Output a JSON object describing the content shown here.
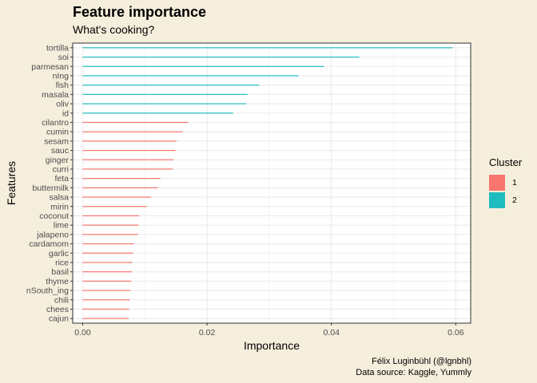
{
  "title": "Feature importance",
  "subtitle": "What's cooking?",
  "caption_line1": "Félix Luginbühl (@lgnbhl)",
  "caption_line2": "Data source: Kaggle, Yummly",
  "colors": {
    "cluster1": "#f8766d",
    "cluster2": "#1fbcbf",
    "panel_bg": "#ffffff",
    "page_bg": "#f6eedd",
    "grid": "#ebebeb"
  },
  "legend": {
    "title": "Cluster",
    "items": [
      {
        "label": "1",
        "color": "#f8766d"
      },
      {
        "label": "2",
        "color": "#1fbcbf"
      }
    ]
  },
  "chart_data": {
    "type": "bar",
    "orientation": "horizontal",
    "title": "Feature importance",
    "subtitle": "What's cooking?",
    "xlabel": "Importance",
    "ylabel": "Features",
    "xlim": [
      -0.0016,
      0.0624
    ],
    "x_ticks": [
      "0.00",
      "0.02",
      "0.04",
      "0.06"
    ],
    "x_tick_values": [
      0,
      0.02,
      0.04,
      0.06
    ],
    "grid": true,
    "legend_position": "right",
    "categories": [
      "tortilla",
      "soi",
      "parmesan",
      "nIng",
      "fish",
      "masala",
      "oliv",
      "id",
      "cilantro",
      "cumin",
      "sesam",
      "sauc",
      "ginger",
      "curri",
      "feta",
      "buttermilk",
      "salsa",
      "mirin",
      "coconut",
      "lime",
      "jalapeno",
      "cardamom",
      "garlic",
      "rice",
      "basil",
      "thyme",
      "nSouth_ing",
      "chili",
      "chees",
      "cajun"
    ],
    "values": [
      0.0595,
      0.0445,
      0.0388,
      0.0347,
      0.0284,
      0.0265,
      0.0263,
      0.0242,
      0.017,
      0.0161,
      0.0151,
      0.0149,
      0.0146,
      0.0145,
      0.0125,
      0.0121,
      0.011,
      0.0103,
      0.0091,
      0.009,
      0.0089,
      0.0082,
      0.0081,
      0.008,
      0.0079,
      0.0078,
      0.0077,
      0.0076,
      0.0075,
      0.0074
    ],
    "cluster": [
      "2",
      "2",
      "2",
      "2",
      "2",
      "2",
      "2",
      "2",
      "1",
      "1",
      "1",
      "1",
      "1",
      "1",
      "1",
      "1",
      "1",
      "1",
      "1",
      "1",
      "1",
      "1",
      "1",
      "1",
      "1",
      "1",
      "1",
      "1",
      "1",
      "1"
    ]
  }
}
